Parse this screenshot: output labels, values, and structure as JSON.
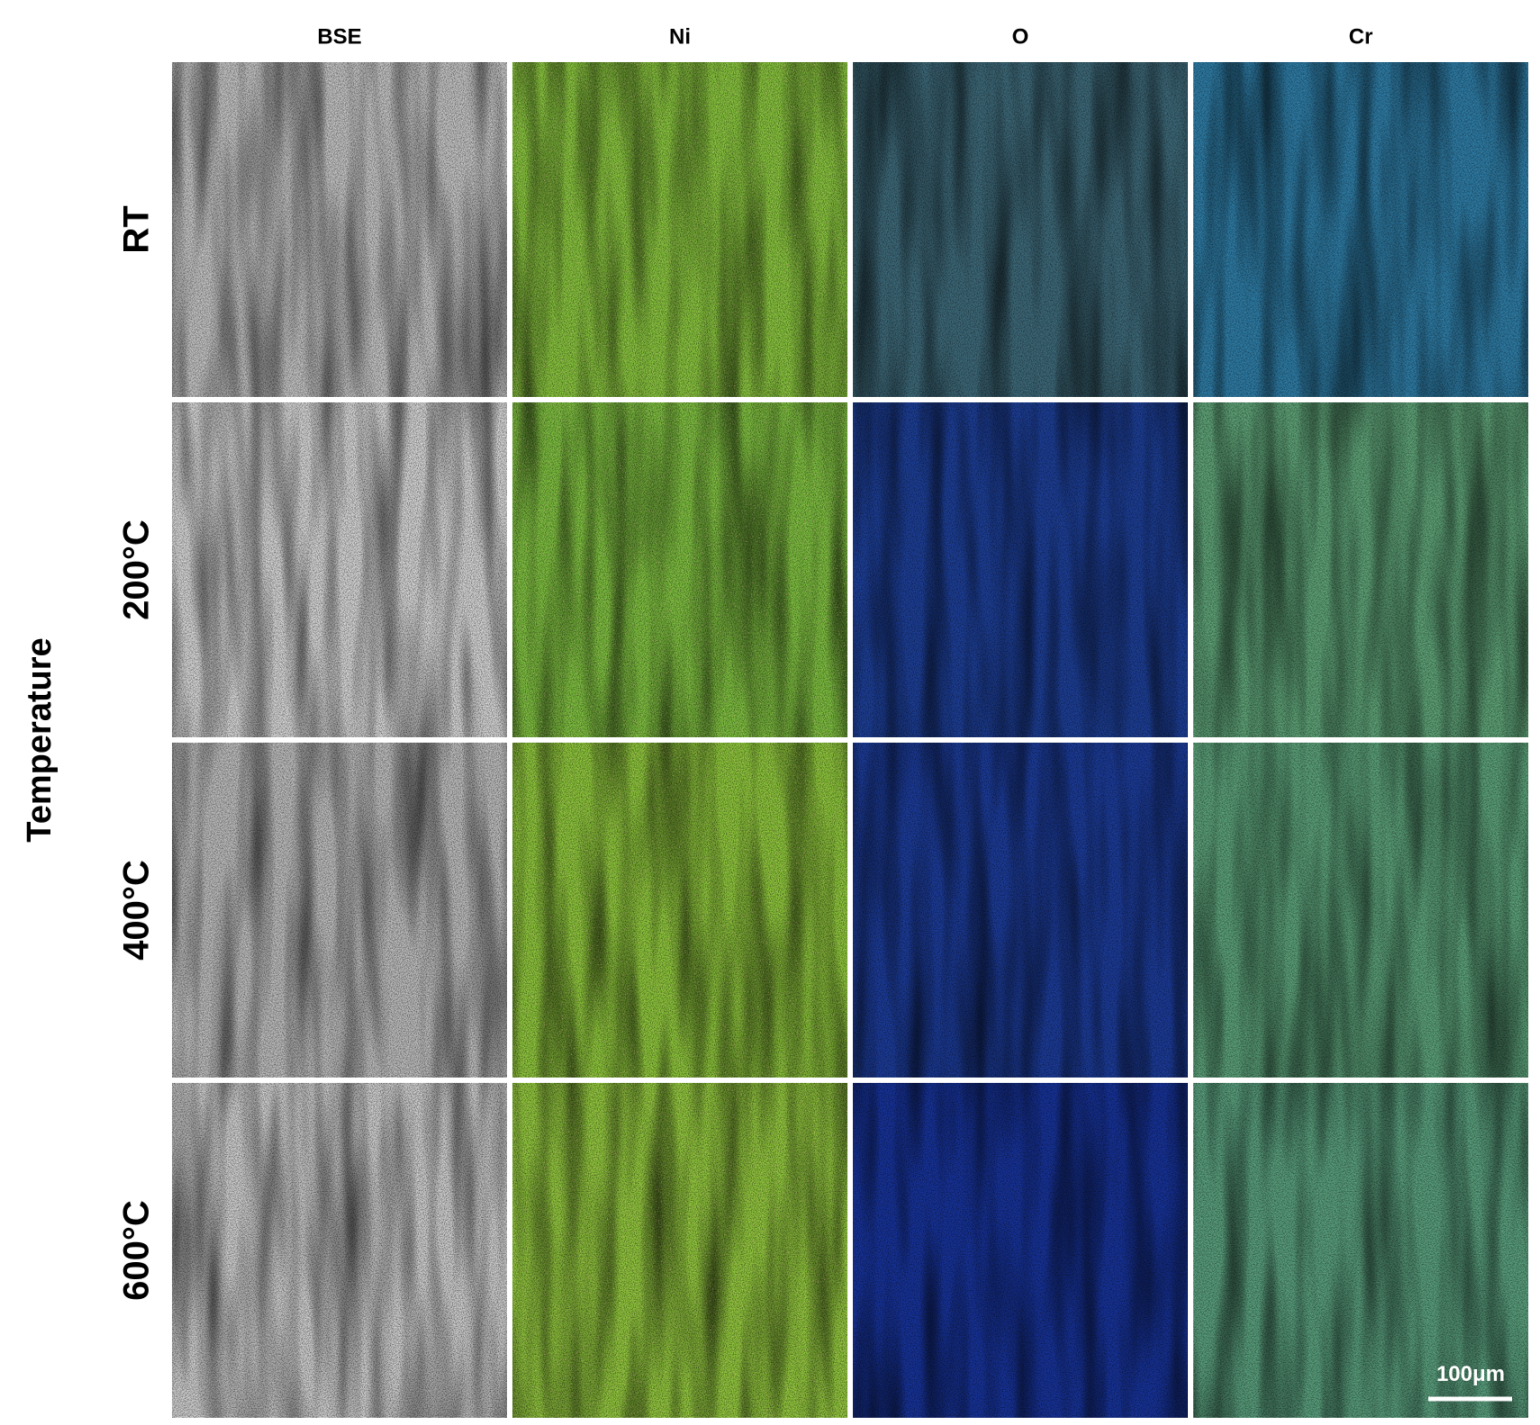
{
  "columns": [
    "BSE",
    "Ni",
    "O",
    "Cr"
  ],
  "rows": [
    "RT",
    "200°C",
    "400°C",
    "600°C"
  ],
  "axis_label": "Temperature",
  "scale_bar": "100μm"
}
